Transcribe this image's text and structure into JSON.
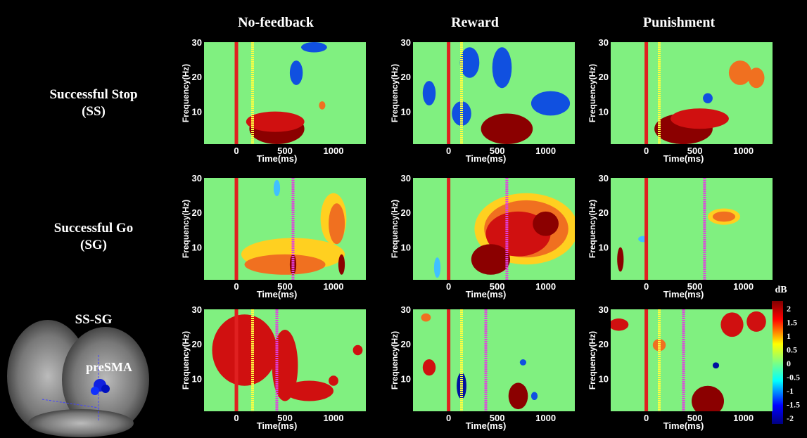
{
  "columns": [
    "No-feedback",
    "Reward",
    "Punishment"
  ],
  "rows": [
    [
      "Successful Stop",
      "(SS)"
    ],
    [
      "Successful Go",
      "(SG)"
    ],
    [
      "SS-SG"
    ]
  ],
  "panel_axes": {
    "ylabel": "Frequency(Hz)",
    "xlabel": "Time(ms)",
    "yticks": [
      "10",
      "20",
      "30"
    ],
    "xticks": [
      "0",
      "500",
      "1000"
    ]
  },
  "brain_label": "preSMA",
  "colorbar": {
    "title": "dB",
    "ticks": [
      "2",
      "1.5",
      "1",
      "0.5",
      "0",
      "-0.5",
      "-1",
      "-1.5",
      "-2"
    ]
  }
}
